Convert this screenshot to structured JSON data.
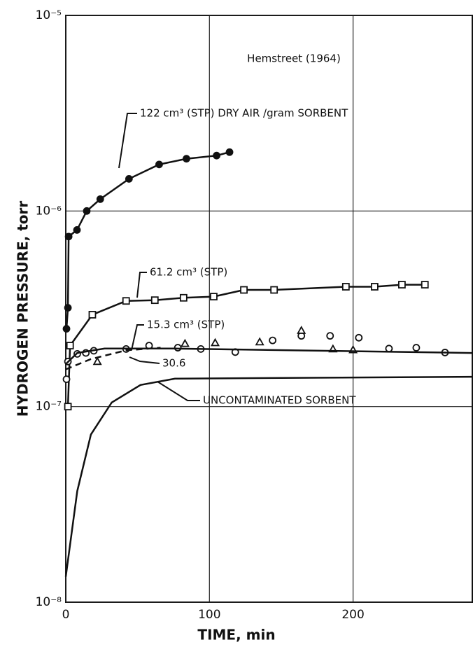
{
  "chart_data": {
    "type": "line",
    "ylog": true,
    "grid": true,
    "xlabel": "TIME, min",
    "ylabel": "HYDROGEN PRESSURE, torr",
    "xlim": [
      0,
      283
    ],
    "xticks": [
      0,
      100,
      200
    ],
    "ylim": [
      1e-08,
      1e-05
    ],
    "yticks": [
      {
        "value": 1e-08,
        "label": "10⁻⁸"
      },
      {
        "value": 1e-07,
        "label": "10⁻⁷"
      },
      {
        "value": 1e-06,
        "label": "10⁻⁶"
      },
      {
        "value": 1e-05,
        "label": "10⁻⁵"
      }
    ],
    "annotations": [
      "Hemstreet (1964)"
    ],
    "series": [
      {
        "name": "122 cm³ (STP) DRY AIR /gram SORBENT",
        "color": "#111",
        "marker": "filled-circle",
        "line": "solid",
        "x": [
          0.5,
          1.5,
          2,
          7.8,
          14.6,
          24,
          44,
          65,
          84,
          105,
          114
        ],
        "values": [
          2.5e-07,
          3.2e-07,
          7.4e-07,
          8e-07,
          1e-06,
          1.15e-06,
          1.46e-06,
          1.73e-06,
          1.85e-06,
          1.92e-06,
          2e-06
        ]
      },
      {
        "name": "61.2 cm³ (STP)",
        "color": "#111",
        "marker": "square",
        "line": "solid",
        "x": [
          1.5,
          3,
          18.5,
          42,
          62,
          82,
          103,
          124,
          145,
          195,
          215,
          234,
          250
        ],
        "values": [
          1e-07,
          2.05e-07,
          2.95e-07,
          3.47e-07,
          3.5e-07,
          3.6e-07,
          3.65e-07,
          3.95e-07,
          3.95e-07,
          4.1e-07,
          4.1e-07,
          4.2e-07,
          4.2e-07
        ]
      },
      {
        "name": "15.3 cm³ (STP)",
        "color": "#111",
        "marker": "circle",
        "line": "none",
        "x": [
          0.5,
          1.5,
          8,
          14,
          19.5,
          42,
          58,
          78,
          94,
          118,
          144,
          164,
          184,
          204,
          225,
          244,
          264
        ],
        "values": [
          1.38e-07,
          1.7e-07,
          1.86e-07,
          1.88e-07,
          1.93e-07,
          1.97e-07,
          2.05e-07,
          2e-07,
          1.97e-07,
          1.9e-07,
          2.18e-07,
          2.3e-07,
          2.3e-07,
          2.25e-07,
          1.98e-07,
          2e-07,
          1.89e-07
        ]
      },
      {
        "name": "30.6",
        "color": "#111",
        "marker": "triangle",
        "line": "none",
        "x": [
          22,
          83,
          104,
          135,
          164,
          186,
          200
        ],
        "values": [
          1.7e-07,
          2.1e-07,
          2.12e-07,
          2.14e-07,
          2.45e-07,
          1.97e-07,
          1.95e-07
        ]
      },
      {
        "color": "#111",
        "marker": "none",
        "line": "solid",
        "x": [
          0,
          8,
          27,
          76,
          283
        ],
        "values": [
          1.65e-07,
          1.88e-07,
          1.98e-07,
          1.98e-07,
          1.88e-07
        ]
      },
      {
        "color": "#111",
        "marker": "none",
        "line": "dashed",
        "x": [
          0,
          17.5,
          42,
          66
        ],
        "values": [
          1.55e-07,
          1.75e-07,
          1.94e-07,
          2e-07
        ]
      },
      {
        "name": "UNCONTAMINATED SORBENT",
        "color": "#111",
        "marker": "none",
        "line": "solid",
        "x": [
          0,
          8,
          17.5,
          32,
          52,
          76,
          283
        ],
        "values": [
          1.35e-08,
          3.7e-08,
          7.2e-08,
          1.05e-07,
          1.29e-07,
          1.39e-07,
          1.42e-07
        ]
      }
    ]
  }
}
